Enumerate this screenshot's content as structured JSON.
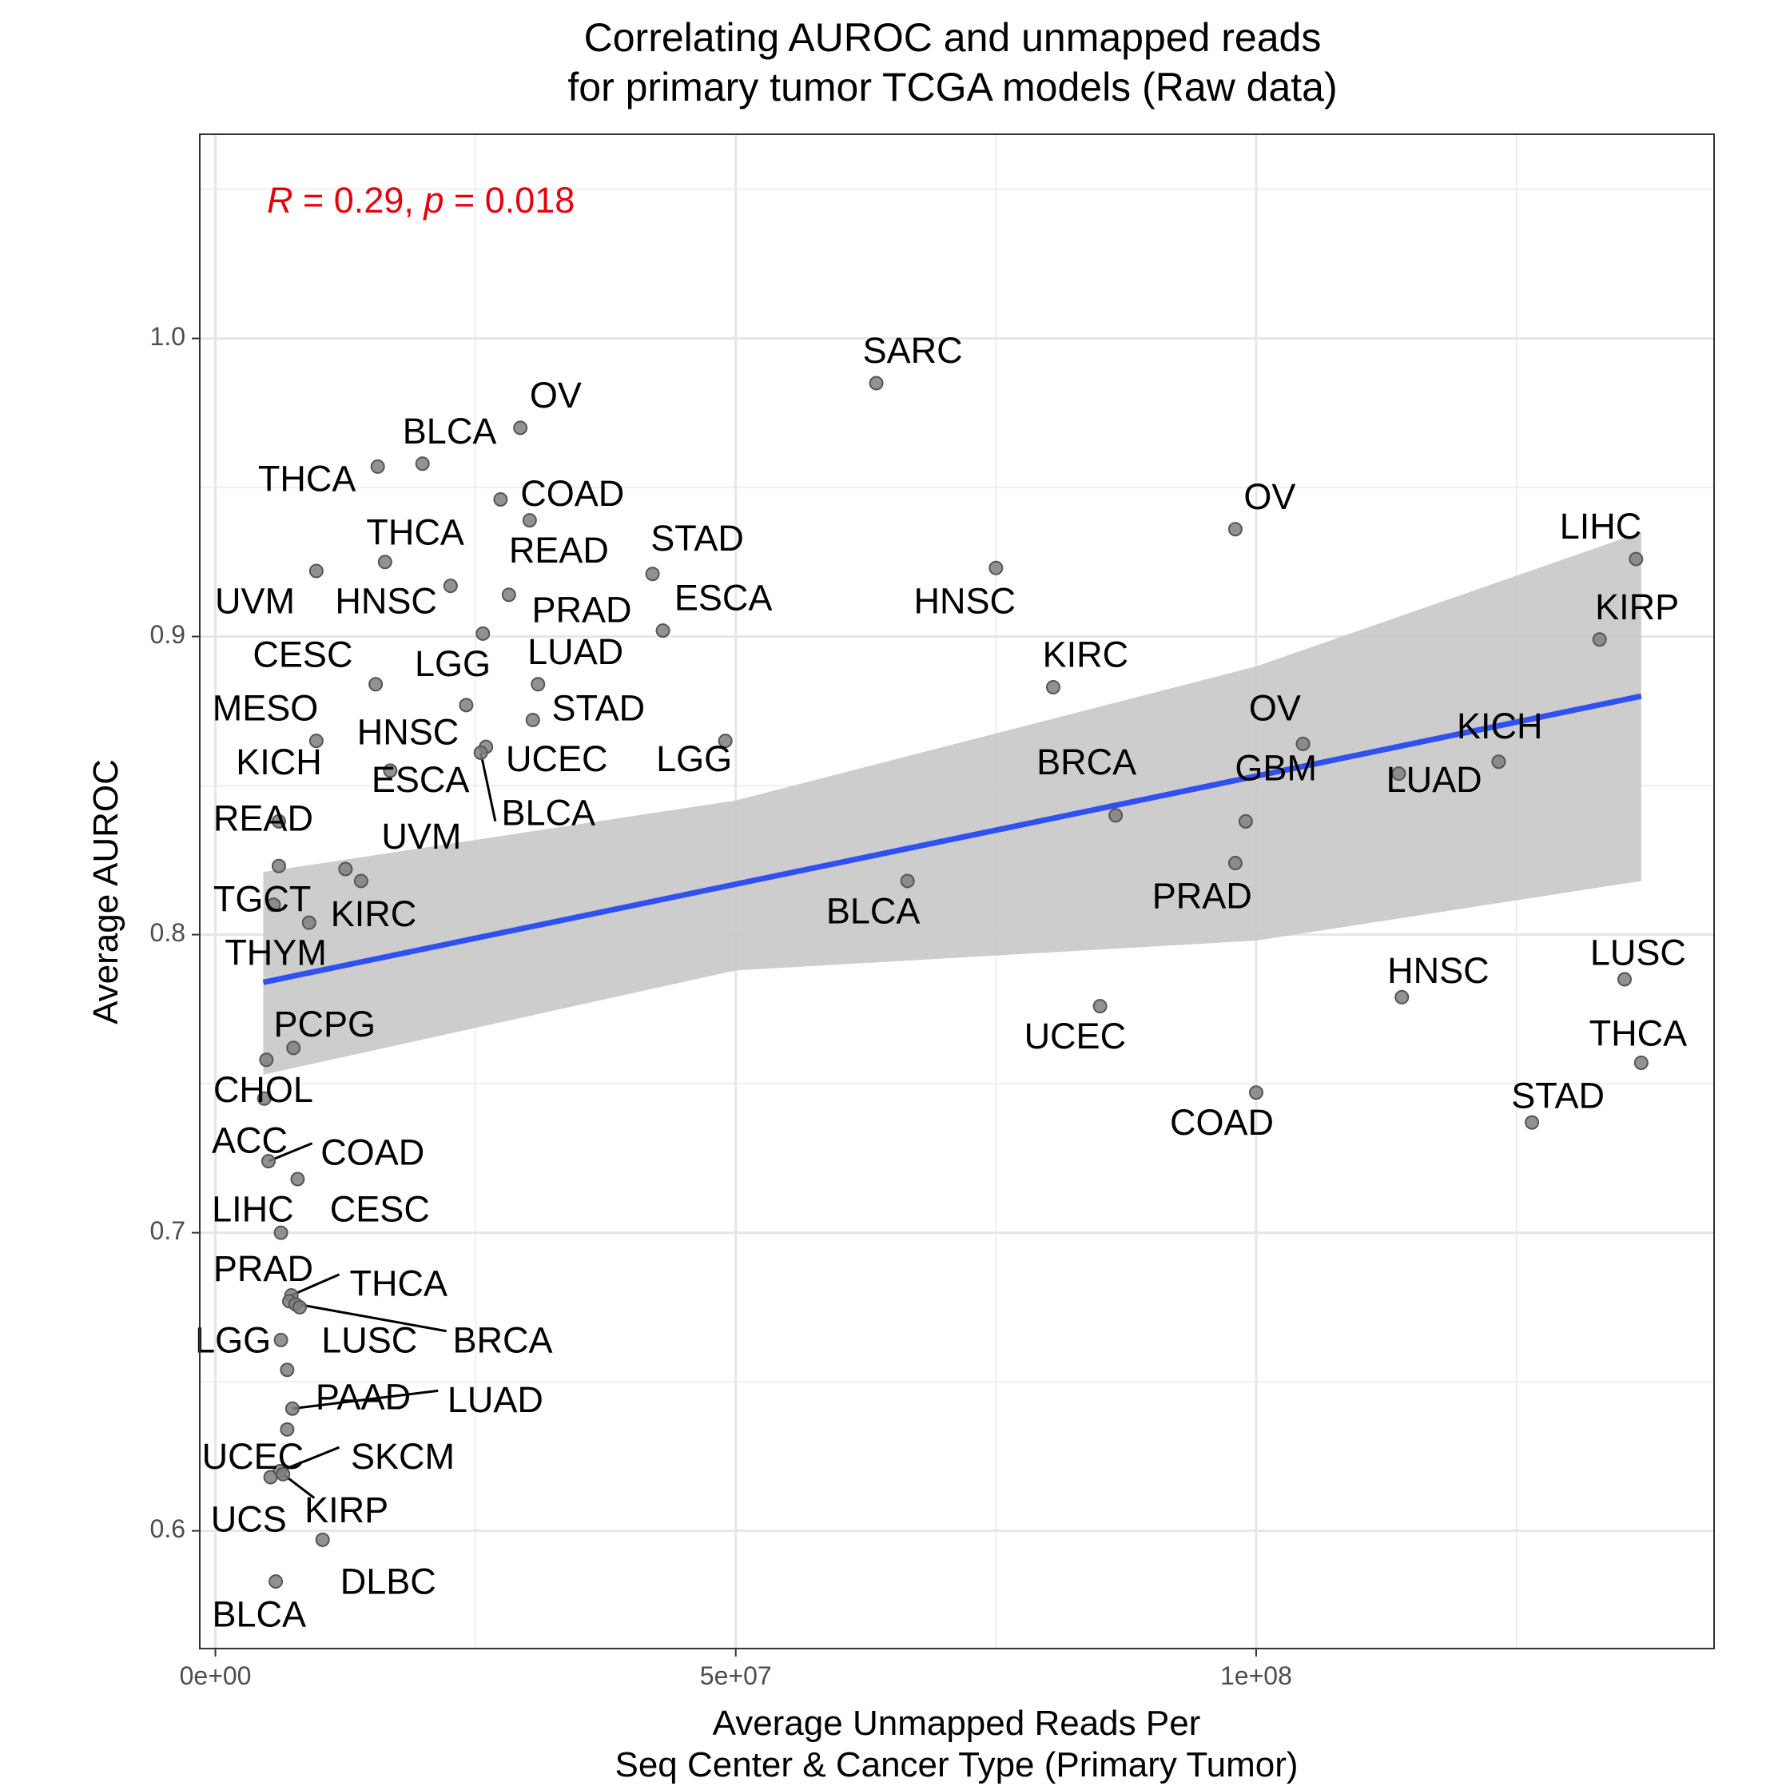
{
  "chart_data": {
    "type": "scatter",
    "title_line1": "Correlating AUROC and unmapped reads",
    "title_line2": "for primary tumor TCGA models (Raw data)",
    "xlabel_line1": "Average Unmapped Reads Per",
    "xlabel_line2": "Seq Center & Cancer Type (Primary Tumor)",
    "ylabel": "Average AUROC",
    "xlim": [
      -1500000,
      144000000
    ],
    "ylim": [
      0.5605,
      1.0685
    ],
    "x_ticks": [
      0,
      50000000,
      100000000
    ],
    "x_tick_labels": [
      "0e+00",
      "5e+07",
      "1e+08"
    ],
    "y_ticks": [
      0.6,
      0.7,
      0.8,
      0.9,
      1.0
    ],
    "y_tick_labels": [
      "0.6",
      "0.7",
      "0.8",
      "0.9",
      "1.0"
    ],
    "grid": true,
    "stats": {
      "r_symbol": "R",
      "r_rest": " = 0.29, ",
      "p_symbol": "p",
      "p_rest": " = 0.018"
    },
    "fit": {
      "x_start": 4600000,
      "y_start": 0.784,
      "x_end": 137000000,
      "y_end": 0.88,
      "ci_upper": [
        [
          4600000,
          0.821
        ],
        [
          50000000,
          0.845
        ],
        [
          100000000,
          0.89
        ],
        [
          137000000,
          0.935
        ]
      ],
      "ci_lower": [
        [
          137000000,
          0.818
        ],
        [
          100000000,
          0.798
        ],
        [
          50000000,
          0.788
        ],
        [
          4600000,
          0.753
        ]
      ]
    },
    "colors": {
      "points": "#7f7f7f",
      "fit_line": "#3050f0",
      "ci_band": "#c8c8c8",
      "stat_text": "#e3000f",
      "grid": "#ebebeb"
    },
    "points": [
      {
        "label": "SARC",
        "x": 63500000,
        "y": 0.985
      },
      {
        "label": "OV",
        "x": 29300000,
        "y": 0.97
      },
      {
        "label": "BLCA",
        "x": 19900000,
        "y": 0.958
      },
      {
        "label": "THCA",
        "x": 15600000,
        "y": 0.957
      },
      {
        "label": "COAD",
        "x": 27400000,
        "y": 0.946
      },
      {
        "label": "READ",
        "x": 30200000,
        "y": 0.939
      },
      {
        "label": "OV",
        "x": 98000000,
        "y": 0.936
      },
      {
        "label": "LIHC",
        "x": 136500000,
        "y": 0.926
      },
      {
        "label": "THCA",
        "x": 16300000,
        "y": 0.925
      },
      {
        "label": "HNSC",
        "x": 75000000,
        "y": 0.923
      },
      {
        "label": "UVM",
        "x": 9700000,
        "y": 0.922
      },
      {
        "label": "STAD",
        "x": 42000000,
        "y": 0.921
      },
      {
        "label": "HNSC",
        "x": 22600000,
        "y": 0.917
      },
      {
        "label": "PRAD",
        "x": 28200000,
        "y": 0.914
      },
      {
        "label": "ESCA",
        "x": 43000000,
        "y": 0.902
      },
      {
        "label": "LGG",
        "x": 25700000,
        "y": 0.901
      },
      {
        "label": "KIRP",
        "x": 133000000,
        "y": 0.899
      },
      {
        "label": "CESC",
        "x": 15400000,
        "y": 0.884
      },
      {
        "label": "LUAD",
        "x": 31000000,
        "y": 0.884
      },
      {
        "label": "KIRC",
        "x": 80500000,
        "y": 0.883
      },
      {
        "label": "MESO",
        "x": 24100000,
        "y": 0.877
      },
      {
        "label": "STAD",
        "x": 30500000,
        "y": 0.872
      },
      {
        "label": "LGG",
        "x": 49000000,
        "y": 0.865
      },
      {
        "label": "OV",
        "x": 104500000,
        "y": 0.864
      },
      {
        "label": "HNSC",
        "x": 9700000,
        "y": 0.865
      },
      {
        "label": "UCEC",
        "x": 26000000,
        "y": 0.863
      },
      {
        "label": "BLCA",
        "x": 25500000,
        "y": 0.861
      },
      {
        "label": "KICH",
        "x": 123300000,
        "y": 0.858
      },
      {
        "label": "ESCA",
        "x": 16800000,
        "y": 0.855
      },
      {
        "label": "LUAD",
        "x": 113700000,
        "y": 0.854
      },
      {
        "label": "BRCA",
        "x": 86500000,
        "y": 0.84
      },
      {
        "label": "KICH",
        "x": 6100000,
        "y": 0.838
      },
      {
        "label": "GBM",
        "x": 99000000,
        "y": 0.838
      },
      {
        "label": "PRAD",
        "x": 98000000,
        "y": 0.824
      },
      {
        "label": "READ",
        "x": 6100000,
        "y": 0.823
      },
      {
        "label": "UVM",
        "x": 12500000,
        "y": 0.822
      },
      {
        "label": "KIRC",
        "x": 14000000,
        "y": 0.818
      },
      {
        "label": "BLCA",
        "x": 66500000,
        "y": 0.818
      },
      {
        "label": "TGCT",
        "x": 5600000,
        "y": 0.81
      },
      {
        "label": "THYM",
        "x": 9000000,
        "y": 0.804
      },
      {
        "label": "LUSC",
        "x": 135400000,
        "y": 0.785
      },
      {
        "label": "HNSC",
        "x": 114000000,
        "y": 0.779
      },
      {
        "label": "UCEC",
        "x": 85000000,
        "y": 0.776
      },
      {
        "label": "PCPG",
        "x": 7500000,
        "y": 0.762
      },
      {
        "label": "CHOL",
        "x": 4900000,
        "y": 0.758
      },
      {
        "label": "THCA",
        "x": 137000000,
        "y": 0.757
      },
      {
        "label": "COAD",
        "x": 100000000,
        "y": 0.747
      },
      {
        "label": "ACC",
        "x": 4700000,
        "y": 0.745
      },
      {
        "label": "STAD",
        "x": 126500000,
        "y": 0.737
      },
      {
        "label": "COAD",
        "x": 5100000,
        "y": 0.724
      },
      {
        "label": "CESC",
        "x": 7900000,
        "y": 0.718
      },
      {
        "label": "LIHC",
        "x": 6300000,
        "y": 0.7
      },
      {
        "label": "THCA",
        "x": 7300000,
        "y": 0.679
      },
      {
        "label": "PRAD",
        "x": 7100000,
        "y": 0.677
      },
      {
        "label": "LUSC",
        "x": 7700000,
        "y": 0.676
      },
      {
        "label": "BRCA",
        "x": 8100000,
        "y": 0.675
      },
      {
        "label": "LGG",
        "x": 6300000,
        "y": 0.664
      },
      {
        "label": "PAAD",
        "x": 6900000,
        "y": 0.654
      },
      {
        "label": "LUAD",
        "x": 7400000,
        "y": 0.641
      },
      {
        "label": "UCEC",
        "x": 6900000,
        "y": 0.634
      },
      {
        "label": "SKCM",
        "x": 6200000,
        "y": 0.62
      },
      {
        "label": "KIRP",
        "x": 6500000,
        "y": 0.619
      },
      {
        "label": "UCS",
        "x": 5300000,
        "y": 0.618
      },
      {
        "label": "DLBC",
        "x": 10300000,
        "y": 0.597
      },
      {
        "label": "BLCA",
        "x": 5800000,
        "y": 0.583
      }
    ],
    "labels": [
      {
        "text": "SARC",
        "x": 67000000,
        "y": 0.995
      },
      {
        "text": "OV",
        "x": 32700000,
        "y": 0.98
      },
      {
        "text": "BLCA",
        "x": 22500000,
        "y": 0.968
      },
      {
        "text": "THCA",
        "x": 8800000,
        "y": 0.952
      },
      {
        "text": "COAD",
        "x": 34300000,
        "y": 0.947
      },
      {
        "text": "OV",
        "x": 101300000,
        "y": 0.946
      },
      {
        "text": "LIHC",
        "x": 133100000,
        "y": 0.936
      },
      {
        "text": "THCA",
        "x": 19200000,
        "y": 0.934
      },
      {
        "text": "STAD",
        "x": 46300000,
        "y": 0.932
      },
      {
        "text": "READ",
        "x": 33000000,
        "y": 0.928
      },
      {
        "text": "HNSC",
        "x": 72000000,
        "y": 0.911
      },
      {
        "text": "UVM",
        "x": 3800000,
        "y": 0.911
      },
      {
        "text": "HNSC",
        "x": 16400000,
        "y": 0.911
      },
      {
        "text": "ESCA",
        "x": 48800000,
        "y": 0.912
      },
      {
        "text": "PRAD",
        "x": 35200000,
        "y": 0.908
      },
      {
        "text": "KIRP",
        "x": 136600000,
        "y": 0.909
      },
      {
        "text": "CESC",
        "x": 8400000,
        "y": 0.893
      },
      {
        "text": "KIRC",
        "x": 83600000,
        "y": 0.893
      },
      {
        "text": "LGG",
        "x": 22800000,
        "y": 0.89
      },
      {
        "text": "LUAD",
        "x": 34600000,
        "y": 0.894
      },
      {
        "text": "MESO",
        "x": 4800000,
        "y": 0.875
      },
      {
        "text": "OV",
        "x": 101800000,
        "y": 0.875
      },
      {
        "text": "STAD",
        "x": 36800000,
        "y": 0.875
      },
      {
        "text": "HNSC",
        "x": 18500000,
        "y": 0.867
      },
      {
        "text": "KICH",
        "x": 123400000,
        "y": 0.869
      },
      {
        "text": "UCEC",
        "x": 32800000,
        "y": 0.858
      },
      {
        "text": "LGG",
        "x": 46000000,
        "y": 0.858
      },
      {
        "text": "KICH",
        "x": 6100000,
        "y": 0.857
      },
      {
        "text": "BRCA",
        "x": 83700000,
        "y": 0.857
      },
      {
        "text": "GBM",
        "x": 101900000,
        "y": 0.855
      },
      {
        "text": "ESCA",
        "x": 19700000,
        "y": 0.851
      },
      {
        "text": "LUAD",
        "x": 117100000,
        "y": 0.851
      },
      {
        "text": "READ",
        "x": 4600000,
        "y": 0.838
      },
      {
        "text": "BLCA",
        "x": 32000000,
        "y": 0.84
      },
      {
        "text": "UVM",
        "x": 19800000,
        "y": 0.832
      },
      {
        "text": "PRAD",
        "x": 94800000,
        "y": 0.812
      },
      {
        "text": "TGCT",
        "x": 4500000,
        "y": 0.811
      },
      {
        "text": "BLCA",
        "x": 63200000,
        "y": 0.807
      },
      {
        "text": "KIRC",
        "x": 15200000,
        "y": 0.806
      },
      {
        "text": "LUSC",
        "x": 136700000,
        "y": 0.793
      },
      {
        "text": "THYM",
        "x": 5800000,
        "y": 0.793
      },
      {
        "text": "HNSC",
        "x": 117500000,
        "y": 0.787
      },
      {
        "text": "PCPG",
        "x": 10500000,
        "y": 0.769
      },
      {
        "text": "UCEC",
        "x": 82600000,
        "y": 0.765
      },
      {
        "text": "THCA",
        "x": 136700000,
        "y": 0.766
      },
      {
        "text": "CHOL",
        "x": 4600000,
        "y": 0.747
      },
      {
        "text": "STAD",
        "x": 129000000,
        "y": 0.745
      },
      {
        "text": "COAD",
        "x": 96700000,
        "y": 0.736
      },
      {
        "text": "ACC",
        "x": 3300000,
        "y": 0.73
      },
      {
        "text": "COAD",
        "x": 15100000,
        "y": 0.726
      },
      {
        "text": "LIHC",
        "x": 3600000,
        "y": 0.707
      },
      {
        "text": "CESC",
        "x": 15800000,
        "y": 0.707
      },
      {
        "text": "PRAD",
        "x": 4600000,
        "y": 0.687
      },
      {
        "text": "THCA",
        "x": 17600000,
        "y": 0.682
      },
      {
        "text": "LGG",
        "x": 1700000,
        "y": 0.663
      },
      {
        "text": "LUSC",
        "x": 14800000,
        "y": 0.663
      },
      {
        "text": "BRCA",
        "x": 27600000,
        "y": 0.663
      },
      {
        "text": "PAAD",
        "x": 14200000,
        "y": 0.644
      },
      {
        "text": "LUAD",
        "x": 26900000,
        "y": 0.643
      },
      {
        "text": "UCEC",
        "x": 3600000,
        "y": 0.624
      },
      {
        "text": "SKCM",
        "x": 18000000,
        "y": 0.624
      },
      {
        "text": "KIRP",
        "x": 12600000,
        "y": 0.606
      },
      {
        "text": "UCS",
        "x": 3200000,
        "y": 0.603
      },
      {
        "text": "DLBC",
        "x": 16600000,
        "y": 0.582
      },
      {
        "text": "BLCA",
        "x": 4200000,
        "y": 0.571
      }
    ],
    "leaders": [
      {
        "x1": 25500000,
        "y1": 0.861,
        "x2": 26900000,
        "y2": 0.838
      },
      {
        "x1": 5100000,
        "y1": 0.724,
        "x2": 9300000,
        "y2": 0.73
      },
      {
        "x1": 7300000,
        "y1": 0.679,
        "x2": 11900000,
        "y2": 0.686
      },
      {
        "x1": 7900000,
        "y1": 0.676,
        "x2": 22200000,
        "y2": 0.667
      },
      {
        "x1": 7400000,
        "y1": 0.641,
        "x2": 21400000,
        "y2": 0.647
      },
      {
        "x1": 6200000,
        "y1": 0.62,
        "x2": 11900000,
        "y2": 0.628
      },
      {
        "x1": 6500000,
        "y1": 0.619,
        "x2": 9500000,
        "y2": 0.611
      }
    ]
  }
}
